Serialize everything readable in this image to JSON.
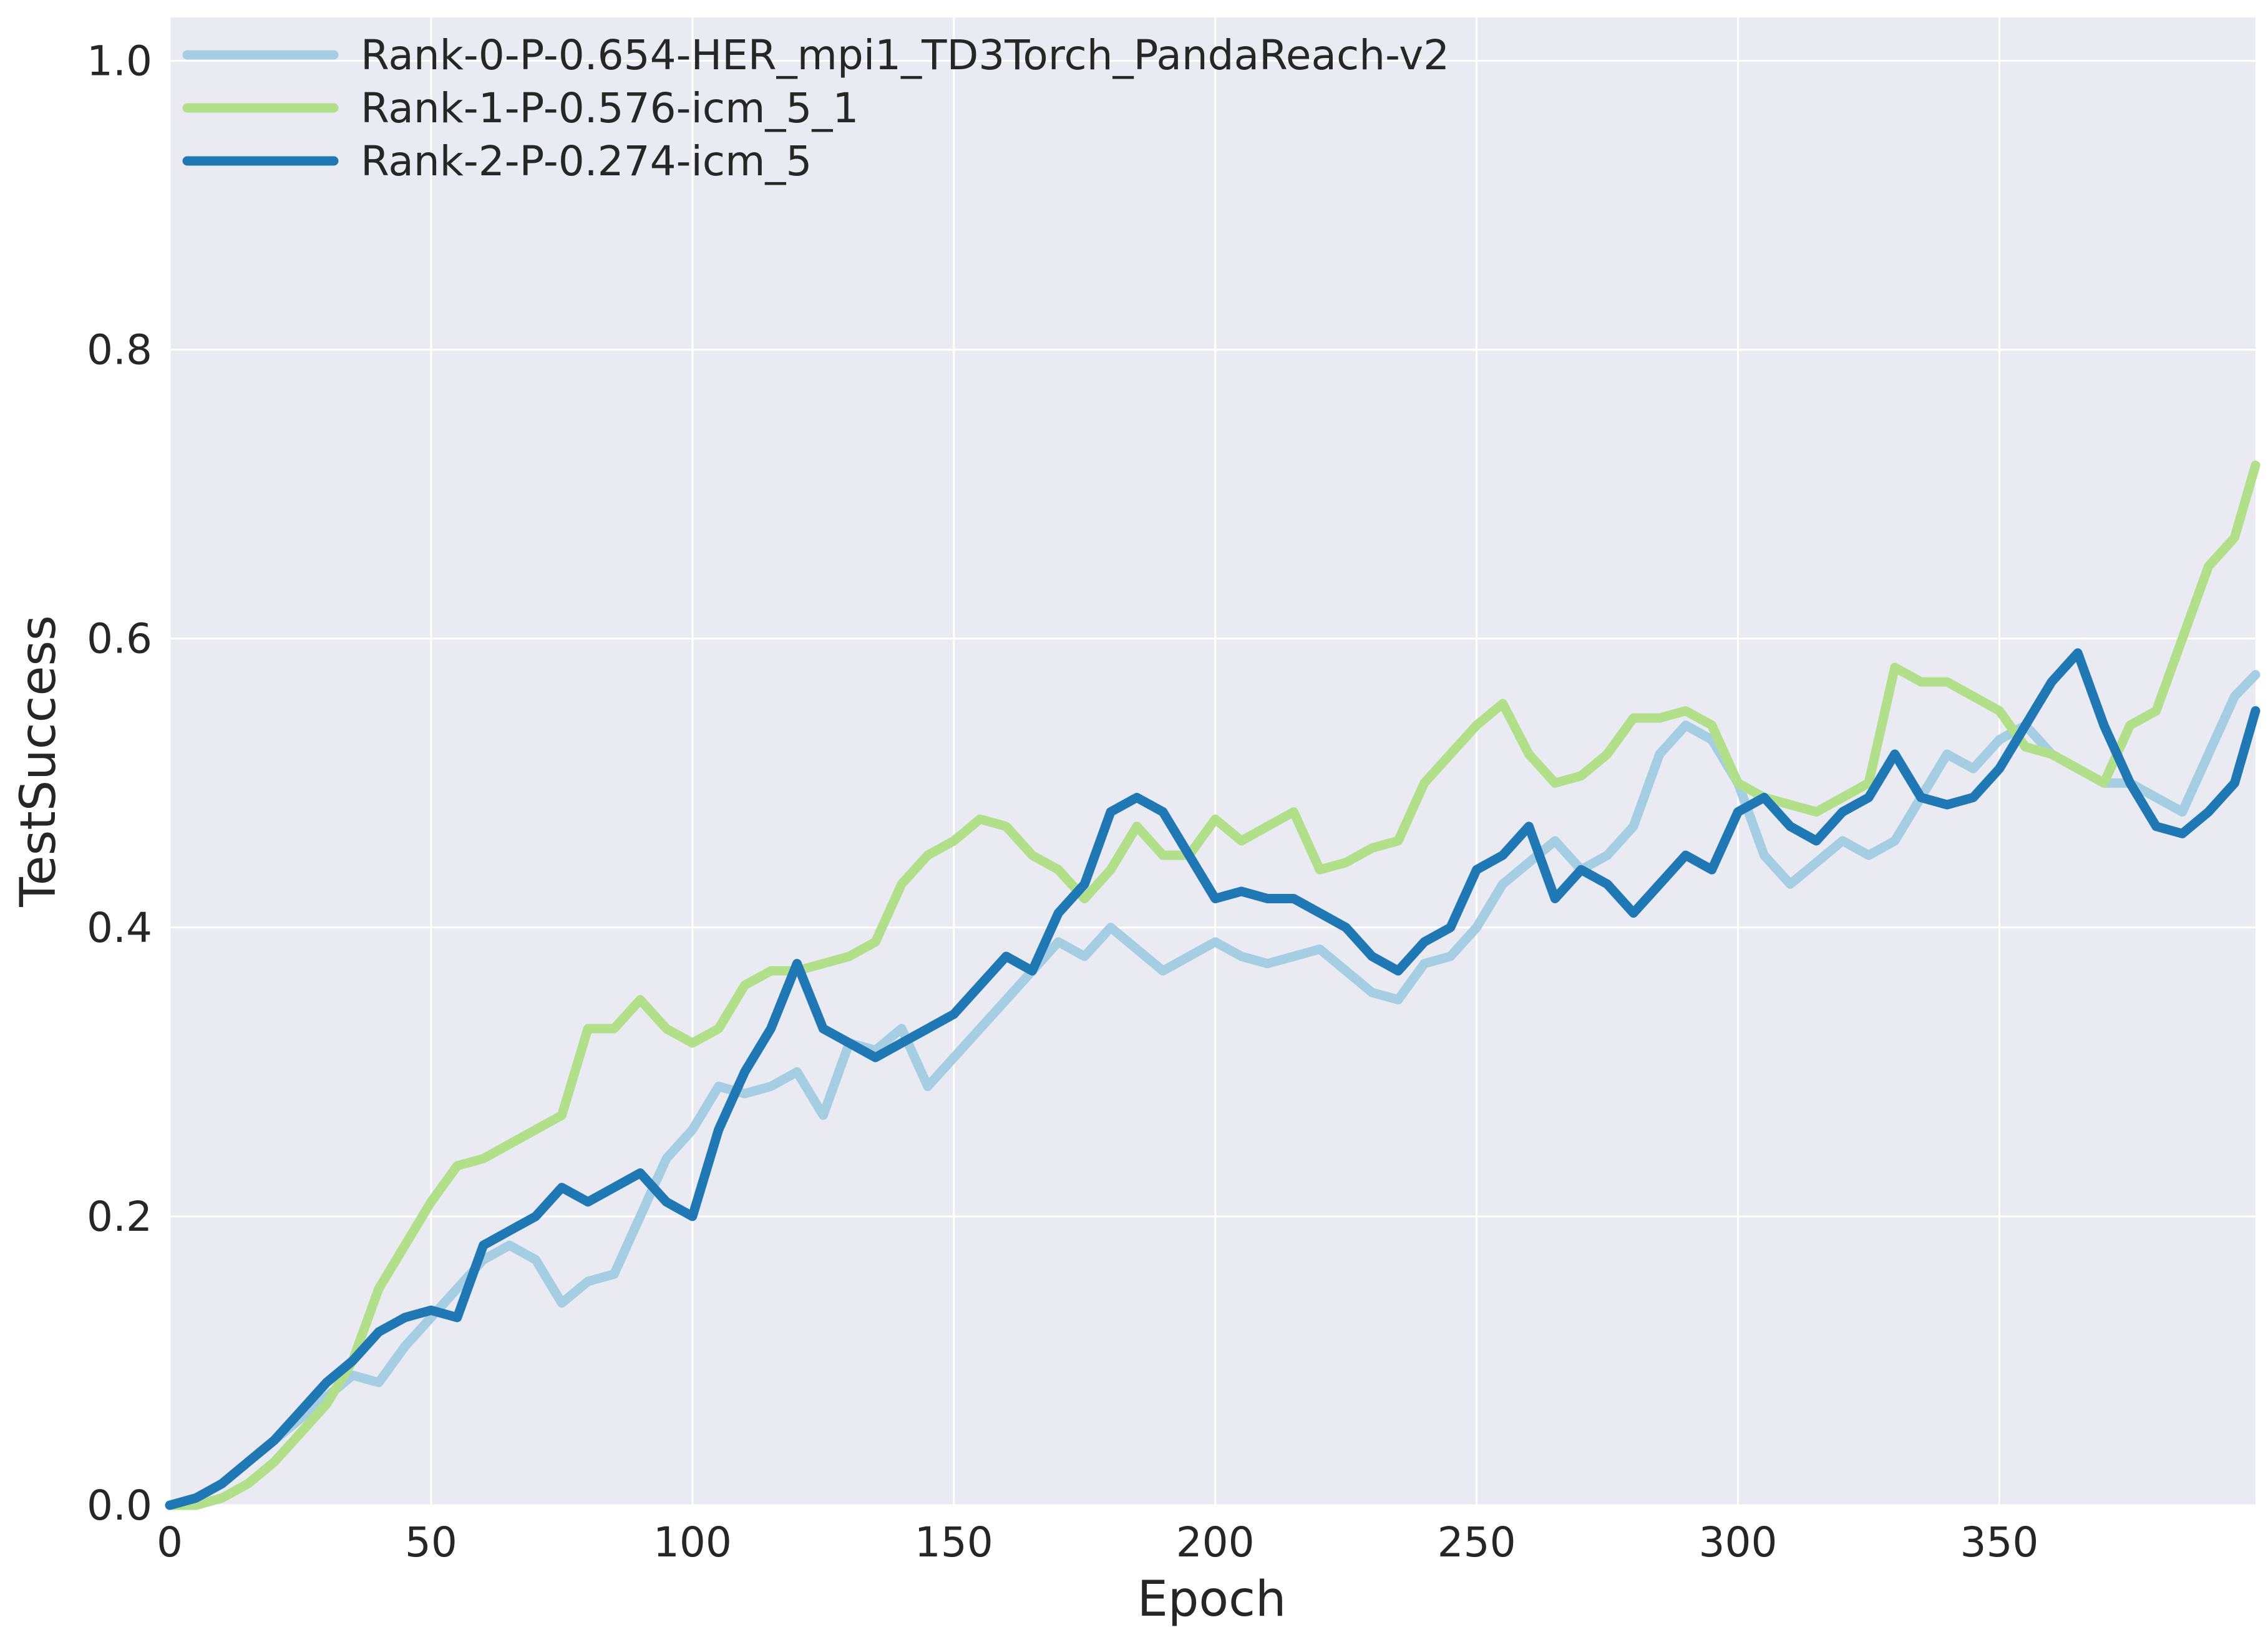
{
  "chart_data": {
    "type": "line",
    "xlabel": "Epoch",
    "ylabel": "TestSuccess",
    "xlim": [
      0,
      399
    ],
    "ylim": [
      0,
      1.03
    ],
    "x_ticks": [
      0,
      50,
      100,
      150,
      200,
      250,
      300,
      350
    ],
    "y_ticks": [
      0.0,
      0.2,
      0.4,
      0.6,
      0.8,
      1.0
    ],
    "x_tick_labels": [
      "0",
      "50",
      "100",
      "150",
      "200",
      "250",
      "300",
      "350"
    ],
    "y_tick_labels": [
      "0.0",
      "0.2",
      "0.4",
      "0.6",
      "0.8",
      "1.0"
    ],
    "grid": true,
    "legend_position": "top-left",
    "background_color": "#eaeaf2",
    "grid_color": "#ffffff",
    "series": [
      {
        "name": "Rank-0-P-0.654-HER_mpi1_TD3Torch_PandaReach-v2",
        "color": "#a6cee3",
        "x": [
          0,
          5,
          10,
          15,
          20,
          25,
          30,
          35,
          40,
          45,
          50,
          55,
          60,
          65,
          70,
          75,
          80,
          85,
          90,
          95,
          100,
          105,
          110,
          115,
          120,
          125,
          130,
          135,
          140,
          145,
          150,
          155,
          160,
          165,
          170,
          175,
          180,
          185,
          190,
          195,
          200,
          205,
          210,
          215,
          220,
          225,
          230,
          235,
          240,
          245,
          250,
          255,
          260,
          265,
          270,
          275,
          280,
          285,
          290,
          295,
          300,
          305,
          310,
          315,
          320,
          325,
          330,
          335,
          340,
          345,
          350,
          355,
          360,
          365,
          370,
          375,
          380,
          385,
          390,
          395,
          399
        ],
        "y": [
          0.0,
          0.005,
          0.015,
          0.03,
          0.045,
          0.06,
          0.075,
          0.09,
          0.085,
          0.11,
          0.13,
          0.15,
          0.17,
          0.18,
          0.17,
          0.14,
          0.155,
          0.16,
          0.2,
          0.24,
          0.26,
          0.29,
          0.285,
          0.29,
          0.3,
          0.27,
          0.32,
          0.315,
          0.33,
          0.29,
          0.31,
          0.33,
          0.35,
          0.37,
          0.39,
          0.38,
          0.4,
          0.385,
          0.37,
          0.38,
          0.39,
          0.38,
          0.375,
          0.38,
          0.385,
          0.37,
          0.355,
          0.35,
          0.375,
          0.38,
          0.4,
          0.43,
          0.445,
          0.46,
          0.44,
          0.45,
          0.47,
          0.52,
          0.54,
          0.53,
          0.5,
          0.45,
          0.43,
          0.445,
          0.46,
          0.45,
          0.46,
          0.49,
          0.52,
          0.51,
          0.53,
          0.54,
          0.52,
          0.51,
          0.5,
          0.5,
          0.49,
          0.48,
          0.52,
          0.56,
          0.575
        ]
      },
      {
        "name": "Rank-1-P-0.576-icm_5_1",
        "color": "#b2df8a",
        "x": [
          0,
          5,
          10,
          15,
          20,
          25,
          30,
          35,
          40,
          45,
          50,
          55,
          60,
          65,
          70,
          75,
          80,
          85,
          90,
          95,
          100,
          105,
          110,
          115,
          120,
          125,
          130,
          135,
          140,
          145,
          150,
          155,
          160,
          165,
          170,
          175,
          180,
          185,
          190,
          195,
          200,
          205,
          210,
          215,
          220,
          225,
          230,
          235,
          240,
          245,
          250,
          255,
          260,
          265,
          270,
          275,
          280,
          285,
          290,
          295,
          300,
          305,
          310,
          315,
          320,
          325,
          330,
          335,
          340,
          345,
          350,
          355,
          360,
          365,
          370,
          375,
          380,
          385,
          390,
          395,
          399
        ],
        "y": [
          0.0,
          0.0,
          0.005,
          0.015,
          0.03,
          0.05,
          0.07,
          0.1,
          0.15,
          0.18,
          0.21,
          0.235,
          0.24,
          0.25,
          0.26,
          0.27,
          0.33,
          0.33,
          0.35,
          0.33,
          0.32,
          0.33,
          0.36,
          0.37,
          0.37,
          0.375,
          0.38,
          0.39,
          0.43,
          0.45,
          0.46,
          0.475,
          0.47,
          0.45,
          0.44,
          0.42,
          0.44,
          0.47,
          0.45,
          0.45,
          0.475,
          0.46,
          0.47,
          0.48,
          0.44,
          0.445,
          0.455,
          0.46,
          0.5,
          0.52,
          0.54,
          0.555,
          0.52,
          0.5,
          0.505,
          0.52,
          0.545,
          0.545,
          0.55,
          0.54,
          0.5,
          0.49,
          0.485,
          0.48,
          0.49,
          0.5,
          0.58,
          0.57,
          0.57,
          0.56,
          0.55,
          0.525,
          0.52,
          0.51,
          0.5,
          0.54,
          0.55,
          0.6,
          0.65,
          0.67,
          0.72
        ]
      },
      {
        "name": "Rank-2-P-0.274-icm_5",
        "color": "#1f78b4",
        "x": [
          0,
          5,
          10,
          15,
          20,
          25,
          30,
          35,
          40,
          45,
          50,
          55,
          60,
          65,
          70,
          75,
          80,
          85,
          90,
          95,
          100,
          105,
          110,
          115,
          120,
          125,
          130,
          135,
          140,
          145,
          150,
          155,
          160,
          165,
          170,
          175,
          180,
          185,
          190,
          195,
          200,
          205,
          210,
          215,
          220,
          225,
          230,
          235,
          240,
          245,
          250,
          255,
          260,
          265,
          270,
          275,
          280,
          285,
          290,
          295,
          300,
          305,
          310,
          315,
          320,
          325,
          330,
          335,
          340,
          345,
          350,
          355,
          360,
          365,
          370,
          375,
          380,
          385,
          390,
          395,
          399
        ],
        "y": [
          0.0,
          0.005,
          0.015,
          0.03,
          0.045,
          0.065,
          0.085,
          0.1,
          0.12,
          0.13,
          0.135,
          0.13,
          0.18,
          0.19,
          0.2,
          0.22,
          0.21,
          0.22,
          0.23,
          0.21,
          0.2,
          0.26,
          0.3,
          0.33,
          0.375,
          0.33,
          0.32,
          0.31,
          0.32,
          0.33,
          0.34,
          0.36,
          0.38,
          0.37,
          0.41,
          0.43,
          0.48,
          0.49,
          0.48,
          0.45,
          0.42,
          0.425,
          0.42,
          0.42,
          0.41,
          0.4,
          0.38,
          0.37,
          0.39,
          0.4,
          0.44,
          0.45,
          0.47,
          0.42,
          0.44,
          0.43,
          0.41,
          0.43,
          0.45,
          0.44,
          0.48,
          0.49,
          0.47,
          0.46,
          0.48,
          0.49,
          0.52,
          0.49,
          0.485,
          0.49,
          0.51,
          0.54,
          0.57,
          0.59,
          0.54,
          0.5,
          0.47,
          0.465,
          0.48,
          0.5,
          0.55
        ]
      }
    ]
  }
}
